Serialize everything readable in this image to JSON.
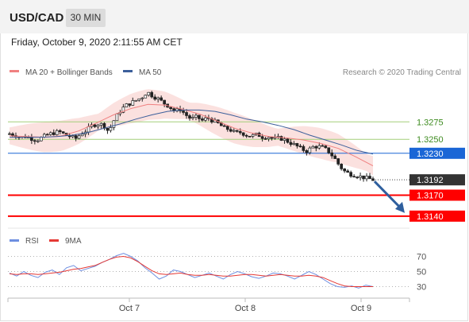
{
  "header": {
    "symbol": "USD/CAD",
    "timeframe": "30 MIN"
  },
  "date_text": "Friday, October 9, 2020 2:11:55 AM CET",
  "colors": {
    "ma20": "#f08080",
    "ma50": "#3c5f9b",
    "band": "#f7c9c4",
    "resistance": "#1a66d6",
    "support": "#ff0000",
    "target_green": "#a3cf7a",
    "current": "#333333",
    "rsi": "#6e8fe0",
    "rsi_ma": "#e53935",
    "arrow": "#2f5f9e"
  },
  "chart_data": [
    {
      "type": "candlestick",
      "legend": [
        {
          "label": "MA 20 + Bollinger Bands",
          "color": "#f08080"
        },
        {
          "label": "MA 50",
          "color": "#3c5f9b"
        }
      ],
      "credit": "Research © 2020 Trading Central",
      "x_ticks": [
        "Oct 7",
        "Oct 8",
        "Oct 9"
      ],
      "ylim": [
        1.3125,
        1.333
      ],
      "levels": [
        {
          "label": "1.3275",
          "value": 1.3275,
          "kind": "green"
        },
        {
          "label": "1.3250",
          "value": 1.325,
          "kind": "green"
        },
        {
          "label": "1.3230",
          "value": 1.323,
          "kind": "resistance"
        },
        {
          "label": "1.3192",
          "value": 1.3192,
          "kind": "current"
        },
        {
          "label": "1.3170",
          "value": 1.317,
          "kind": "support"
        },
        {
          "label": "1.3140",
          "value": 1.314,
          "kind": "support"
        }
      ],
      "close_path": [
        1.3258,
        1.3256,
        1.3253,
        1.3254,
        1.3251,
        1.3249,
        1.3253,
        1.3257,
        1.3259,
        1.3261,
        1.3257,
        1.3254,
        1.3251,
        1.3258,
        1.3263,
        1.327,
        1.3272,
        1.3271,
        1.3261,
        1.3278,
        1.329,
        1.3298,
        1.3302,
        1.3306,
        1.331,
        1.3318,
        1.3312,
        1.3308,
        1.3302,
        1.3297,
        1.329,
        1.3293,
        1.3285,
        1.3279,
        1.3282,
        1.3277,
        1.3281,
        1.3276,
        1.3272,
        1.3266,
        1.3264,
        1.3259,
        1.326,
        1.3256,
        1.3255,
        1.3257,
        1.3253,
        1.3254,
        1.325,
        1.3252,
        1.3249,
        1.3245,
        1.3241,
        1.3236,
        1.3233,
        1.3239,
        1.324,
        1.3238,
        1.3232,
        1.3223,
        1.3211,
        1.3203,
        1.32,
        1.3198,
        1.3196,
        1.3194,
        1.3192
      ],
      "ma50_path": [
        1.3253,
        1.3253,
        1.3253,
        1.3254,
        1.3256,
        1.326,
        1.3266,
        1.3272,
        1.3279,
        1.3285,
        1.329,
        1.3292,
        1.3292,
        1.329,
        1.3285,
        1.3279,
        1.3275,
        1.327,
        1.3264,
        1.3256,
        1.3249,
        1.3242,
        1.3234,
        1.3229
      ],
      "ma20_path": [
        1.3255,
        1.3254,
        1.3253,
        1.3255,
        1.3262,
        1.3273,
        1.3285,
        1.3294,
        1.33,
        1.3299,
        1.3293,
        1.3286,
        1.3276,
        1.3266,
        1.3259,
        1.3254,
        1.3252,
        1.3249,
        1.3244,
        1.3237,
        1.3225,
        1.3212
      ]
    },
    {
      "type": "line",
      "legend": [
        {
          "label": "RSI",
          "color": "#6e8fe0"
        },
        {
          "label": "9MA",
          "color": "#e53935"
        }
      ],
      "y_ticks": [
        "70",
        "50",
        "30"
      ],
      "ylim": [
        20,
        80
      ],
      "rsi": [
        48,
        44,
        50,
        45,
        42,
        49,
        52,
        46,
        55,
        58,
        51,
        54,
        57,
        62,
        66,
        71,
        74,
        70,
        64,
        55,
        48,
        40,
        44,
        52,
        50,
        46,
        42,
        45,
        48,
        44,
        40,
        46,
        50,
        47,
        43,
        41,
        44,
        48,
        47,
        44,
        40,
        45,
        50,
        46,
        40,
        34,
        30,
        29,
        31,
        28,
        32,
        30
      ],
      "rsi_ma": [
        47,
        46,
        47,
        47,
        46,
        47,
        48,
        49,
        51,
        53,
        54,
        56,
        58,
        62,
        66,
        69,
        70,
        68,
        63,
        57,
        51,
        47,
        46,
        47,
        48,
        46,
        45,
        45,
        46,
        45,
        44,
        44,
        45,
        46,
        46,
        45,
        44,
        45,
        46,
        45,
        44,
        44,
        45,
        44,
        42,
        38,
        34,
        31,
        30,
        30,
        30,
        30
      ]
    }
  ]
}
